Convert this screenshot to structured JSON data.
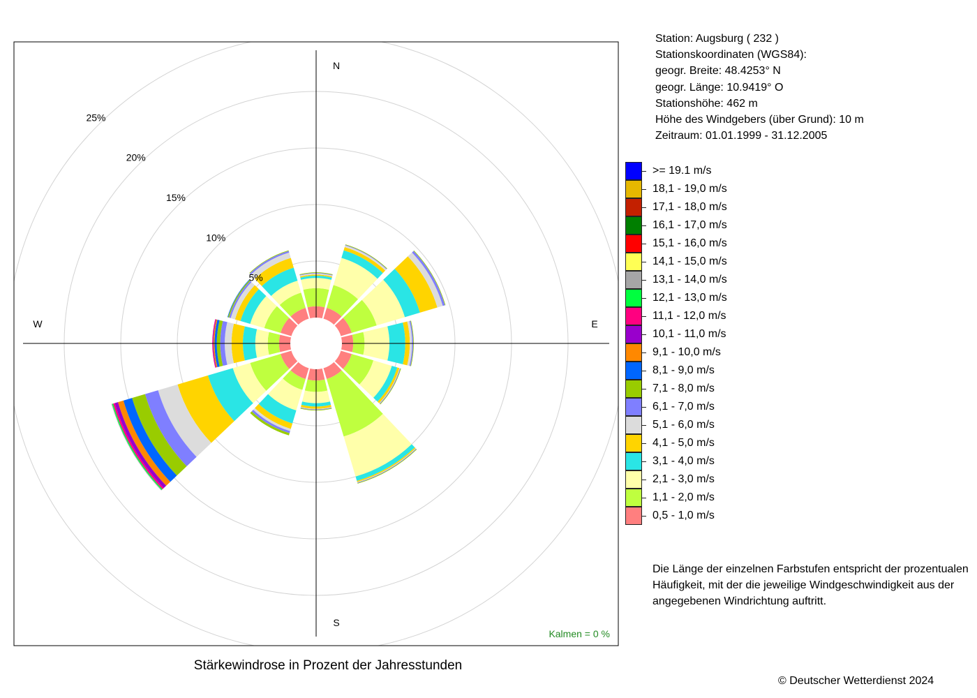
{
  "station": {
    "line1": "Station:  Augsburg  ( 232 )",
    "line2": "Stationskoordinaten (WGS84):",
    "line3": "geogr. Breite: 48.4253° N",
    "line4": "geogr. Länge: 10.9419° O",
    "line5": "Stationshöhe: 462 m",
    "line6": "Höhe des Windgebers (über Grund): 10 m",
    "line7": "Zeitraum: 01.01.1999 - 31.12.2005"
  },
  "note": "Die Länge der einzelnen Farbstufen entspricht der prozentualen Häufigkeit, mit der die jeweilige Windgeschwindigkeit aus der angegebenen Windrichtung auftritt.",
  "caption": "Stärkewindrose in Prozent der Jahresstunden",
  "copyright": "© Deutscher Wetterdienst  2024",
  "calm": "Kalmen  =  0 %",
  "colors": {
    "calm": "#228b22",
    "axis": "#000000",
    "grid": "#d3d3d3"
  },
  "chart_data": {
    "type": "windrose",
    "title": "Stärkewindrose in Prozent der Jahresstunden",
    "unit": "%",
    "radial_max": 25,
    "radial_ticks": [
      5,
      10,
      15,
      20,
      25
    ],
    "radial_tick_labels": [
      "5%",
      "10%",
      "15%",
      "20%",
      "25%"
    ],
    "compass_labels": {
      "N": "N",
      "E": "E",
      "S": "S",
      "W": "W"
    },
    "directions": [
      0,
      30,
      60,
      90,
      120,
      150,
      180,
      210,
      240,
      270,
      300,
      330
    ],
    "speed_classes": [
      {
        "label": "0,5 - 1,0 m/s",
        "color": "#ff7f7f"
      },
      {
        "label": "1,1 - 2,0 m/s",
        "color": "#bfff3f"
      },
      {
        "label": "2,1 - 3,0 m/s",
        "color": "#ffffaa"
      },
      {
        "label": "3,1 - 4,0 m/s",
        "color": "#2ae5e5"
      },
      {
        "label": "4,1 - 5,0 m/s",
        "color": "#ffd400"
      },
      {
        "label": "5,1 - 6,0 m/s",
        "color": "#dcdcdc"
      },
      {
        "label": "6,1 - 7,0 m/s",
        "color": "#7f7fff"
      },
      {
        "label": "7,1 - 8,0 m/s",
        "color": "#99cc00"
      },
      {
        "label": "8,1 - 9,0 m/s",
        "color": "#0066ff"
      },
      {
        "label": "9,1 - 10,0 m/s",
        "color": "#ff8800"
      },
      {
        "label": "10,1 - 11,0 m/s",
        "color": "#9900cc"
      },
      {
        "label": "11,1 - 12,0 m/s",
        "color": "#ff0080"
      },
      {
        "label": "12,1 - 13,0 m/s",
        "color": "#00ff3f"
      },
      {
        "label": "13,1 - 14,0 m/s",
        "color": "#a6a6a6"
      },
      {
        "label": "14,1 - 15,0 m/s",
        "color": "#ffff55"
      },
      {
        "label": "15,1 - 16,0 m/s",
        "color": "#ff0000"
      },
      {
        "label": "16,1 - 17,0 m/s",
        "color": "#007f00"
      },
      {
        "label": "17,1 - 18,0 m/s",
        "color": "#c32000"
      },
      {
        "label": "18,1 - 19,0 m/s",
        "color": "#e6b800"
      },
      {
        "label": ">= 19.1 m/s",
        "color": "#0000ff"
      }
    ],
    "legend_order": [
      ">= 19.1 m/s",
      "18,1 - 19,0 m/s",
      "17,1 - 18,0 m/s",
      "16,1 - 17,0 m/s",
      "15,1 - 16,0 m/s",
      "14,1 - 15,0 m/s",
      "13,1 - 14,0 m/s",
      "12,1 - 13,0 m/s",
      "11,1 - 12,0 m/s",
      "10,1 - 11,0 m/s",
      "9,1 - 10,0 m/s",
      "8,1 - 9,0 m/s",
      "7,1 - 8,0 m/s",
      "6,1 - 7,0 m/s",
      "5,1 - 6,0 m/s",
      "4,1 - 5,0 m/s",
      "3,1 - 4,0 m/s",
      "2,1 - 3,0 m/s",
      "1,1 - 2,0 m/s",
      "0,5 - 1,0 m/s"
    ],
    "cumulative_percent": [
      [
        1.0,
        2.6,
        3.5,
        3.7,
        3.8,
        3.9,
        3.95,
        4.0
      ],
      [
        1.0,
        3.1,
        5.6,
        6.3,
        6.6,
        6.75,
        6.8,
        6.85
      ],
      [
        1.0,
        3.3,
        5.9,
        7.3,
        8.9,
        9.4,
        9.6,
        9.65
      ],
      [
        1.0,
        2.0,
        4.2,
        5.6,
        6.0,
        6.2,
        6.3,
        6.35
      ],
      [
        1.0,
        3.0,
        4.7,
        5.2,
        5.4,
        5.45,
        5.5,
        5.55
      ],
      [
        1.0,
        6.3,
        10.0,
        10.4,
        10.5,
        10.55,
        10.6,
        10.65
      ],
      [
        1.0,
        2.0,
        3.0,
        3.3,
        3.5,
        3.55,
        3.6,
        3.65
      ],
      [
        1.0,
        2.0,
        3.9,
        5.1,
        5.6,
        5.8,
        6.0,
        6.2
      ],
      [
        1.0,
        3.8,
        5.4,
        7.7,
        10.5,
        12.3,
        13.5,
        14.7,
        15.5,
        16.0,
        16.3,
        16.45,
        16.55,
        16.6
      ],
      [
        1.0,
        2.0,
        3.1,
        4.2,
        5.2,
        5.8,
        6.2,
        6.5,
        6.7,
        6.8,
        6.85,
        6.9
      ],
      [
        1.0,
        2.5,
        3.8,
        4.7,
        5.2,
        5.6,
        5.75,
        5.85,
        5.9
      ],
      [
        1.0,
        2.4,
        3.5,
        4.7,
        5.6,
        6.1,
        6.25,
        6.3
      ]
    ]
  }
}
